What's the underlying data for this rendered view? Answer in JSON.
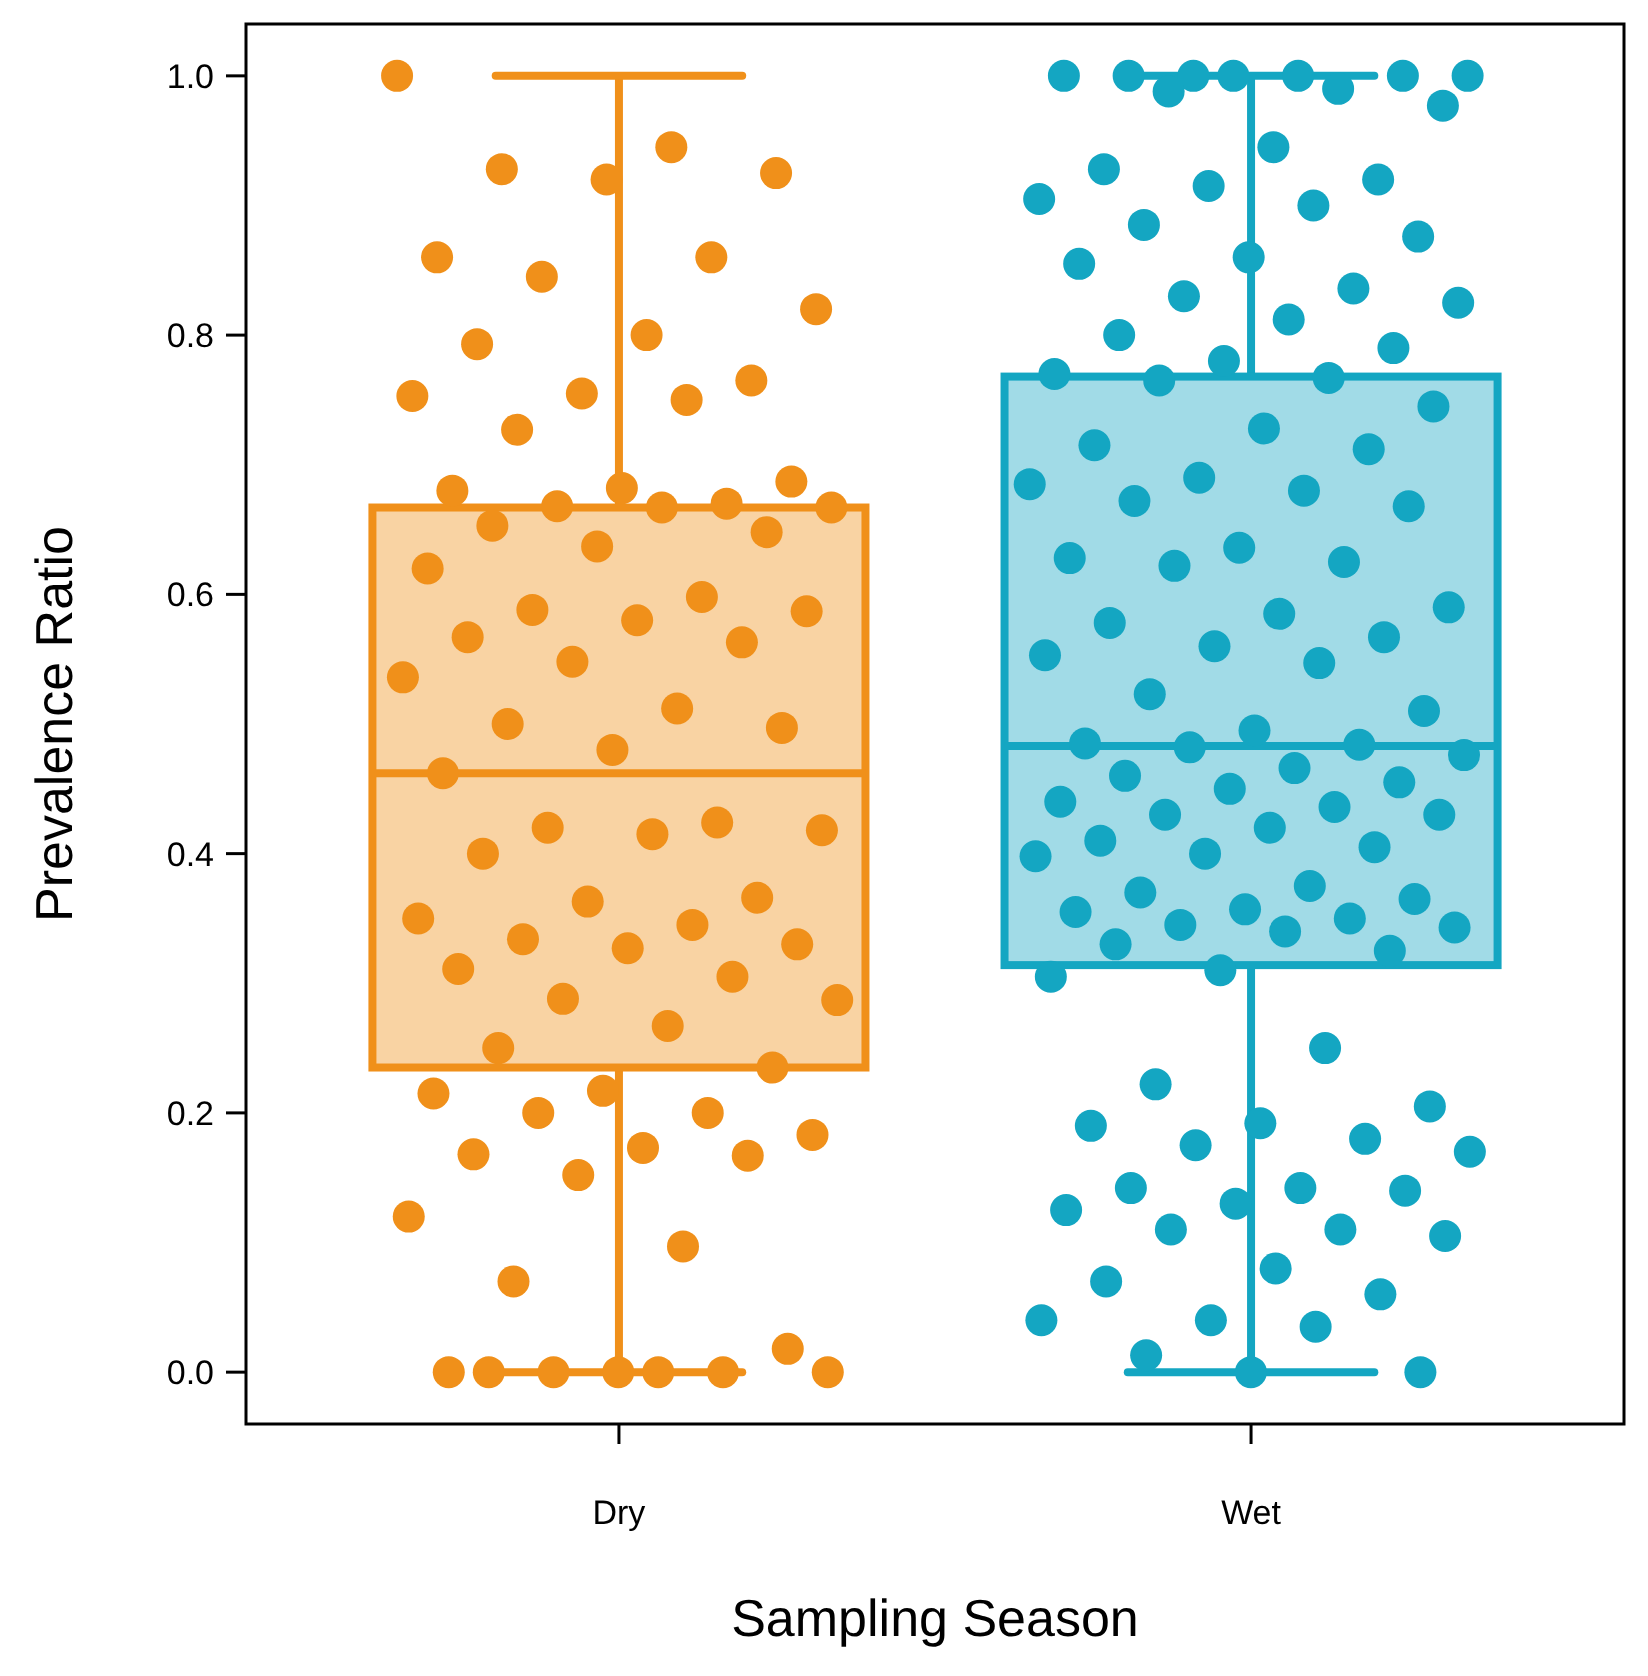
{
  "chart_data": {
    "type": "box",
    "xlabel": "Sampling Season",
    "ylabel": "Prevalence Ratio",
    "categories": [
      "Dry",
      "Wet"
    ],
    "colors": [
      "#f0901a",
      "#14a6c2"
    ],
    "boxes": [
      {
        "low": 0,
        "q1": 0.235,
        "median": 0.462,
        "q3": 0.667,
        "high": 1
      },
      {
        "low": 0,
        "q1": 0.314,
        "median": 0.483,
        "q3": 0.768,
        "high": 1
      }
    ],
    "ylim": [
      -0.04,
      1.04
    ],
    "yticks": [
      {
        "value": 0,
        "label": "0.0"
      },
      {
        "value": 0.2,
        "label": "0.2"
      },
      {
        "value": 0.4,
        "label": "0.4"
      },
      {
        "value": 0.6,
        "label": "0.6"
      },
      {
        "value": 0.8,
        "label": "0.8"
      },
      {
        "value": 1,
        "label": "1.0"
      }
    ],
    "grid": false,
    "series": [
      {
        "type": "scatter",
        "color": "#f0901a",
        "marker": "circle",
        "x": [
          "Dry",
          "Dry",
          "Dry",
          "Dry",
          "Dry",
          "Dry",
          "Dry",
          "Dry",
          "Dry",
          "Dry",
          "Dry",
          "Dry",
          "Dry",
          "Dry",
          "Dry",
          "Dry",
          "Dry",
          "Dry",
          "Dry",
          "Dry",
          "Dry",
          "Dry",
          "Dry",
          "Dry",
          "Dry",
          "Dry",
          "Dry",
          "Dry",
          "Dry",
          "Dry",
          "Dry",
          "Dry",
          "Dry",
          "Dry",
          "Dry",
          "Dry",
          "Dry",
          "Dry",
          "Dry",
          "Dry",
          "Dry",
          "Dry",
          "Dry",
          "Dry",
          "Dry",
          "Dry",
          "Dry",
          "Dry",
          "Dry",
          "Dry",
          "Dry",
          "Dry",
          "Dry",
          "Dry",
          "Dry",
          "Dry",
          "Dry",
          "Dry",
          "Dry",
          "Dry",
          "Dry",
          "Dry",
          "Dry",
          "Dry",
          "Dry",
          "Dry",
          "Dry",
          "Dry",
          "Dry",
          "Dry",
          "Dry",
          "Dry",
          "Dry",
          "Dry",
          "Dry",
          "Dry",
          "Dry",
          "Dry",
          "Dry"
        ],
        "values": [
          1.0,
          0.945,
          0.928,
          0.925,
          0.92,
          0.86,
          0.86,
          0.845,
          0.82,
          0.8,
          0.793,
          0.765,
          0.755,
          0.753,
          0.75,
          0.727,
          0.687,
          0.682,
          0.68,
          0.67,
          0.668,
          0.667,
          0.667,
          0.653,
          0.648,
          0.637,
          0.62,
          0.598,
          0.588,
          0.587,
          0.58,
          0.567,
          0.563,
          0.548,
          0.536,
          0.512,
          0.5,
          0.497,
          0.48,
          0.462,
          0.424,
          0.42,
          0.418,
          0.415,
          0.4,
          0.366,
          0.363,
          0.35,
          0.345,
          0.334,
          0.33,
          0.327,
          0.311,
          0.305,
          0.288,
          0.287,
          0.267,
          0.25,
          0.235,
          0.217,
          0.215,
          0.2,
          0.2,
          0.183,
          0.173,
          0.168,
          0.167,
          0.152,
          0.12,
          0.097,
          0.07,
          0.018,
          0,
          0,
          0,
          0,
          0,
          0,
          0
        ]
      },
      {
        "type": "scatter",
        "color": "#14a6c2",
        "marker": "circle",
        "x": [
          "Wet",
          "Wet",
          "Wet",
          "Wet",
          "Wet",
          "Wet",
          "Wet",
          "Wet",
          "Wet",
          "Wet",
          "Wet",
          "Wet",
          "Wet",
          "Wet",
          "Wet",
          "Wet",
          "Wet",
          "Wet",
          "Wet",
          "Wet",
          "Wet",
          "Wet",
          "Wet",
          "Wet",
          "Wet",
          "Wet",
          "Wet",
          "Wet",
          "Wet",
          "Wet",
          "Wet",
          "Wet",
          "Wet",
          "Wet",
          "Wet",
          "Wet",
          "Wet",
          "Wet",
          "Wet",
          "Wet",
          "Wet",
          "Wet",
          "Wet",
          "Wet",
          "Wet",
          "Wet",
          "Wet",
          "Wet",
          "Wet",
          "Wet",
          "Wet",
          "Wet",
          "Wet",
          "Wet",
          "Wet",
          "Wet",
          "Wet",
          "Wet",
          "Wet",
          "Wet",
          "Wet",
          "Wet",
          "Wet",
          "Wet",
          "Wet",
          "Wet",
          "Wet",
          "Wet",
          "Wet",
          "Wet",
          "Wet",
          "Wet",
          "Wet",
          "Wet",
          "Wet",
          "Wet",
          "Wet",
          "Wet",
          "Wet",
          "Wet",
          "Wet",
          "Wet",
          "Wet",
          "Wet",
          "Wet",
          "Wet",
          "Wet",
          "Wet",
          "Wet",
          "Wet",
          "Wet",
          "Wet",
          "Wet",
          "Wet",
          "Wet",
          "Wet",
          "Wet",
          "Wet",
          "Wet",
          "Wet",
          "Wet",
          "Wet",
          "Wet",
          "Wet",
          "Wet",
          "Wet",
          "Wet",
          "Wet"
        ],
        "values": [
          1,
          1,
          1,
          1,
          1,
          1,
          1,
          0.99,
          0.988,
          0.977,
          0.945,
          0.928,
          0.92,
          0.915,
          0.905,
          0.9,
          0.885,
          0.876,
          0.86,
          0.855,
          0.836,
          0.83,
          0.825,
          0.812,
          0.8,
          0.79,
          0.78,
          0.77,
          0.767,
          0.765,
          0.745,
          0.728,
          0.715,
          0.712,
          0.69,
          0.685,
          0.68,
          0.672,
          0.668,
          0.636,
          0.628,
          0.625,
          0.622,
          0.59,
          0.585,
          0.578,
          0.567,
          0.56,
          0.553,
          0.547,
          0.523,
          0.51,
          0.495,
          0.485,
          0.484,
          0.482,
          0.476,
          0.466,
          0.46,
          0.455,
          0.45,
          0.44,
          0.436,
          0.43,
          0.43,
          0.42,
          0.41,
          0.405,
          0.4,
          0.398,
          0.375,
          0.37,
          0.365,
          0.357,
          0.355,
          0.35,
          0.345,
          0.343,
          0.34,
          0.33,
          0.325,
          0.31,
          0.305,
          0.25,
          0.222,
          0.205,
          0.192,
          0.19,
          0.18,
          0.175,
          0.17,
          0.142,
          0.142,
          0.14,
          0.13,
          0.125,
          0.11,
          0.11,
          0.105,
          0.08,
          0.07,
          0.06,
          0.04,
          0.04,
          0.035,
          0.013,
          0,
          0
        ]
      }
    ]
  }
}
